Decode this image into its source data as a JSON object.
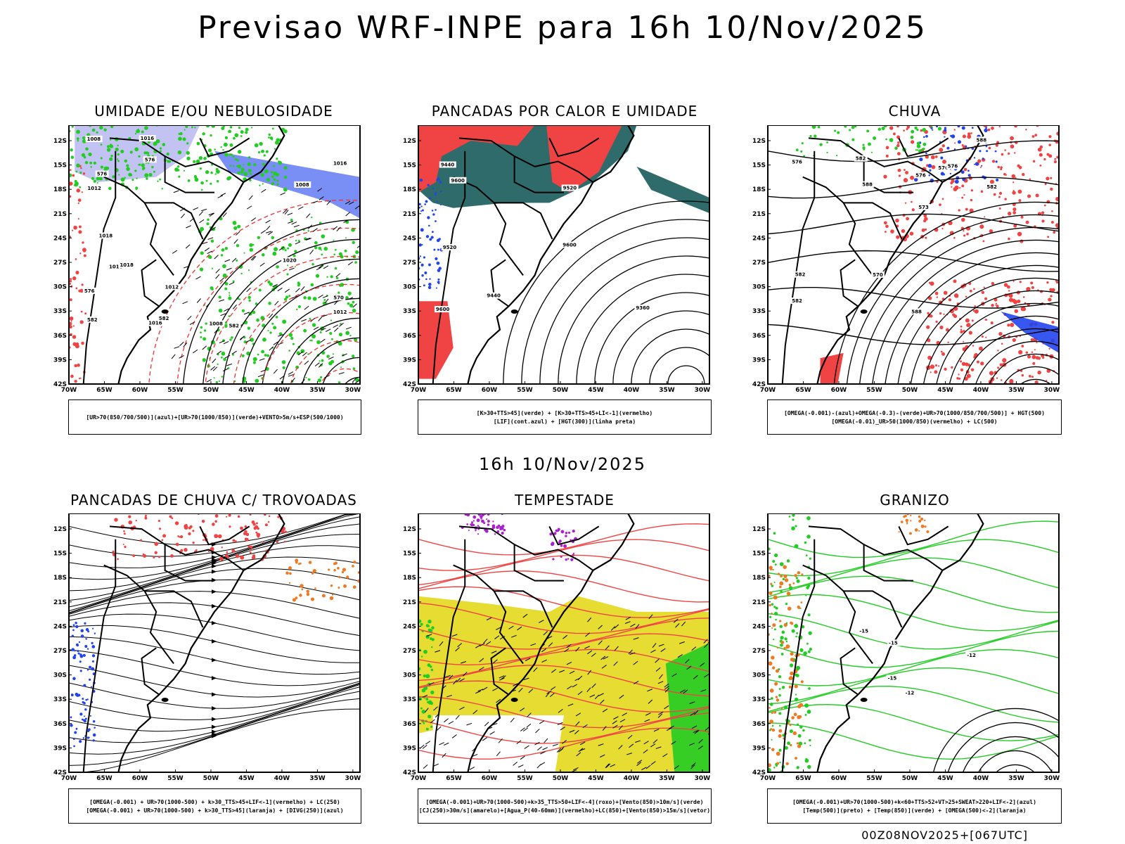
{
  "title": "Previsao WRF-INPE  para 16h 10/Nov/2025",
  "mid_time": "16h 10/Nov/2025",
  "footer": "00Z08NOV2025+[067UTC]",
  "lat_ticks": [
    "12S",
    "15S",
    "18S",
    "21S",
    "24S",
    "27S",
    "30S",
    "33S",
    "36S",
    "39S",
    "42S"
  ],
  "lon_ticks": [
    "70W",
    "65W",
    "60W",
    "55W",
    "50W",
    "45W",
    "40W",
    "35W",
    "30W"
  ],
  "colors": {
    "red": "#f04444",
    "green": "#22cc22",
    "blue": "#2244ee",
    "lavender": "#aaaaee",
    "teal": "#2f6b6b",
    "yellow": "#e6dc32",
    "orange": "#ee7a22",
    "purple": "#aa22cc",
    "contour": "#000000",
    "dashed_red": "#ee3333"
  },
  "panels": [
    {
      "id": "umidade",
      "title": "UMIDADE E/OU NEBULOSIDADE",
      "legend": [
        "[UR>70(850/700/500)](azul)+[UR>70(1000/850)](verde)+VENTO>5m/s+ESP(500/1000)"
      ],
      "contour_labels": [
        "1008",
        "1008",
        "1008",
        "1012",
        "1012",
        "1012",
        "1016",
        "1016",
        "1016",
        "1016",
        "1018",
        "1018",
        "1020",
        "576",
        "576",
        "576",
        "570",
        "582",
        "582",
        "582"
      ]
    },
    {
      "id": "pancadas-calor",
      "title": "PANCADAS POR CALOR E UMIDADE",
      "legend": [
        "[K>30+TTS>45](verde) + [K>30+TTS>45+LI<-1](vermelho)",
        "[LIF](cont.azul) + [HGT(300)](linha preta)"
      ],
      "contour_labels": [
        "9600",
        "9520",
        "9600",
        "9600",
        "9520",
        "9440",
        "9440",
        "9360"
      ]
    },
    {
      "id": "chuva",
      "title": "CHUVA",
      "legend": [
        "[OMEGA(-0.001)-(azul)+OMEGA(-0.3)-(verde)+UR>70(1000/850/700/500)] + HGT(500)",
        "[OMEGA(-0.01)_UR>50(1000/850)(vermelho) + LC(500)"
      ],
      "contour_labels": [
        "588",
        "588",
        "582",
        "588",
        "582",
        "576",
        "576",
        "582",
        "576",
        "570",
        "576",
        "573",
        "582"
      ]
    },
    {
      "id": "trovoadas",
      "title": "PANCADAS DE CHUVA C/ TROVOADAS",
      "legend": [
        "[OMEGA(-0.001) + UR>70(1000-500) + k>30_TTS>45+LIF<-1](vermelho) + LC(250)",
        "[OMEGA(-0.001) + UR>70(1000-500) + k>30_TTS>45](laranja) + [DIVG(250)](azul)"
      ],
      "contour_labels": []
    },
    {
      "id": "tempestade",
      "title": "TEMPESTADE",
      "legend": [
        "[OMEGA(-0.001)+UR>70(1000-500)+k>35_TTS>50+LIF<-4](roxo)+[Vento(850)>10m/s](verde)",
        "[CJ(250)>30m/s](amarelo)+[Agua_P(40-60mm)](vermelho)+LC(850)+[Vento(850)>15m/s](vetor)"
      ],
      "contour_labels": []
    },
    {
      "id": "granizo",
      "title": "GRANIZO",
      "legend": [
        "[OMEGA(-0.001)+UR>70(1000-500)+k<60+TTS>52+VT>25+SWEAT>220+LIF<-2](azul)",
        "[Temp(500)](preto) + [Temp(850)](verde) + [OMEGA(500)<-2](laranja)"
      ],
      "contour_labels": [
        "-12",
        "-12",
        "-15",
        "-15",
        "-15"
      ]
    }
  ]
}
